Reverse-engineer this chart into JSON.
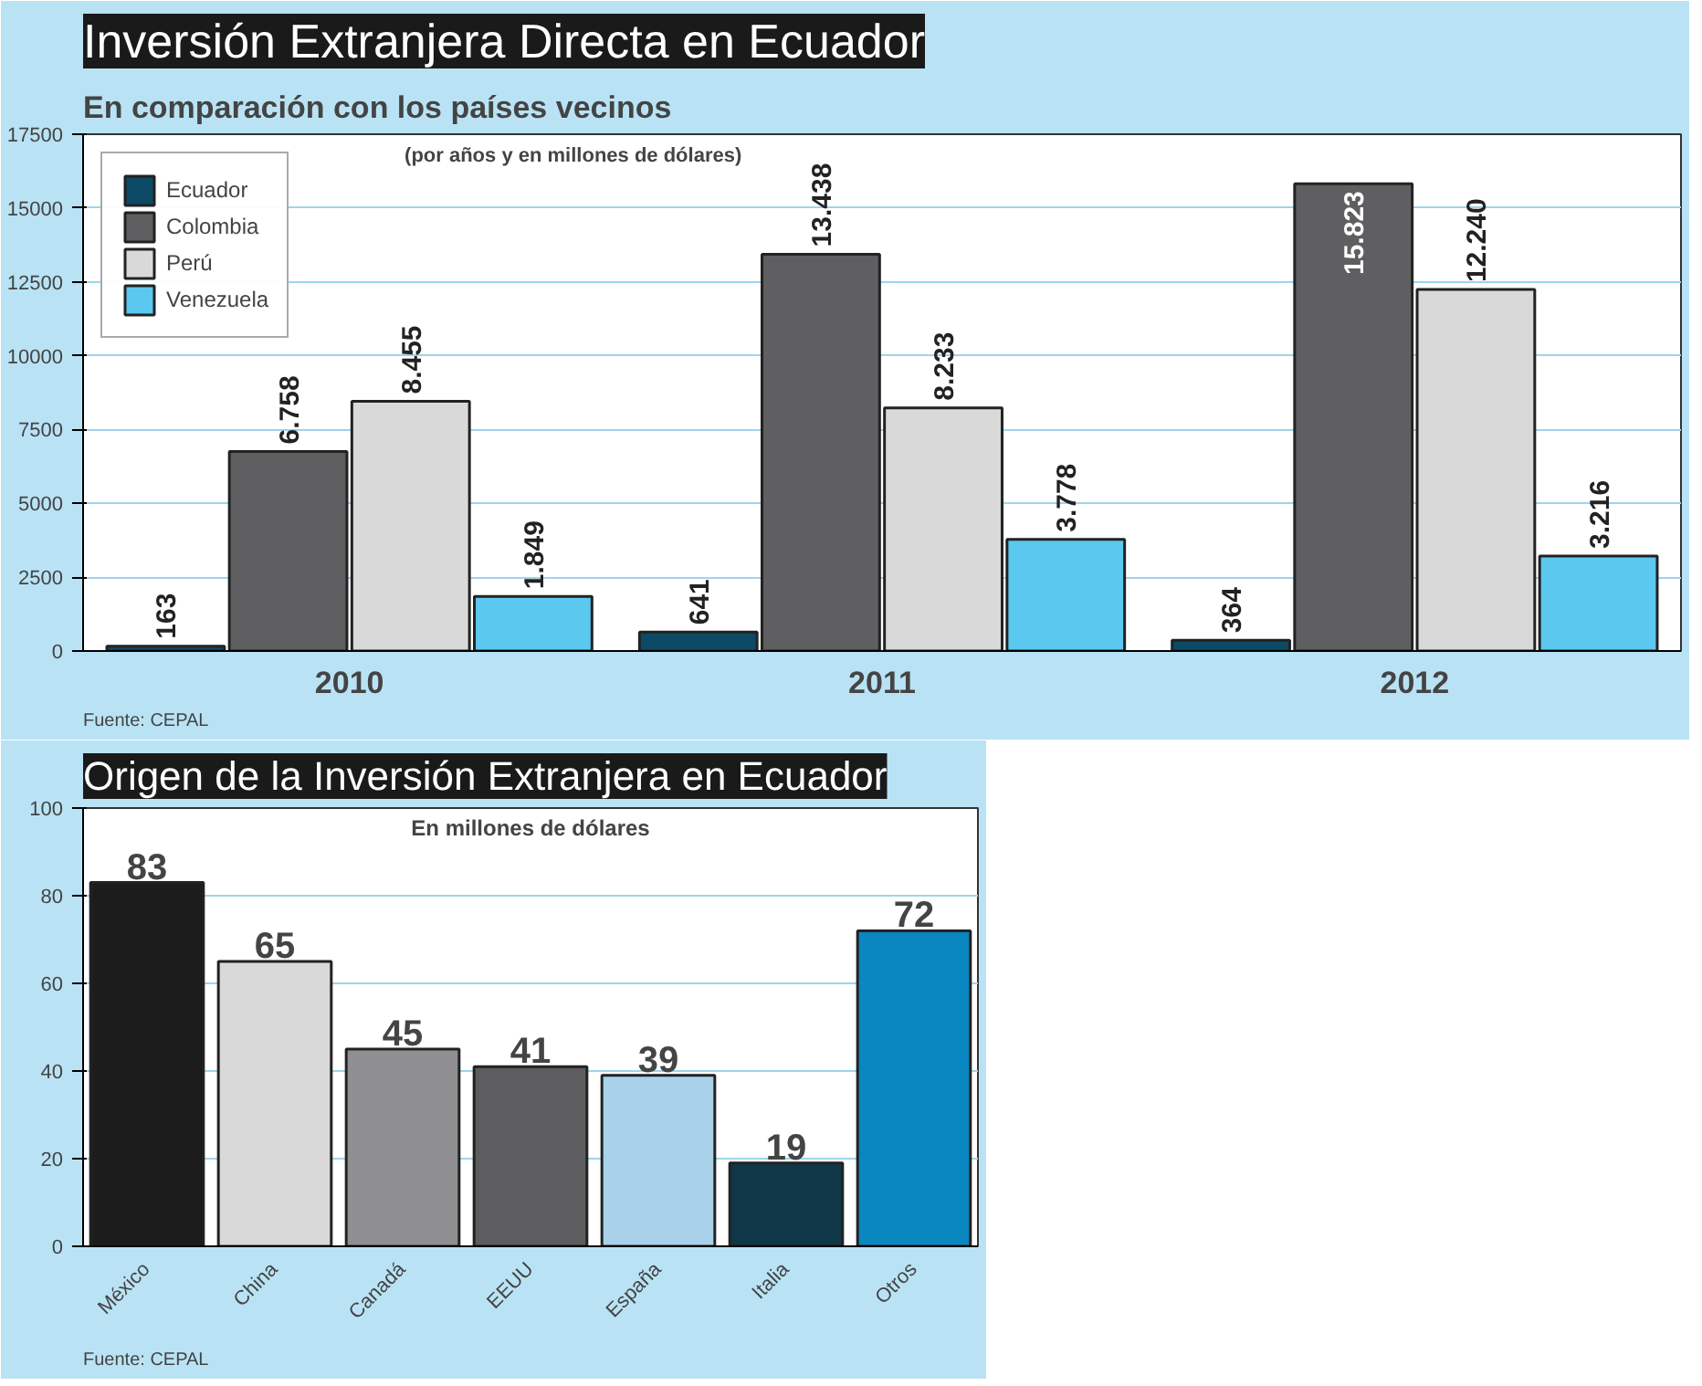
{
  "chart_data": [
    {
      "type": "bar",
      "title": "Inversión Extranjera Directa en Ecuador",
      "subtitle": "En comparación con los países vecinos",
      "annotations": [
        "(por años y en millones de dólares)",
        "Fuente: CEPAL"
      ],
      "categories": [
        "2010",
        "2011",
        "2012"
      ],
      "series": [
        {
          "name": "Ecuador",
          "color": "#0d4a66",
          "values": [
            163,
            641,
            364
          ],
          "value_labels": [
            "163",
            "641",
            "364"
          ]
        },
        {
          "name": "Colombia",
          "color": "#5f5f61",
          "values": [
            6758,
            13438,
            15823
          ],
          "value_labels": [
            "6.758",
            "13.438",
            "15.823"
          ]
        },
        {
          "name": "Perú",
          "color": "#d9d9d9",
          "values": [
            8455,
            8233,
            12240
          ],
          "value_labels": [
            "8.455",
            "8.233",
            "12.240"
          ]
        },
        {
          "name": "Venezuela",
          "color": "#5bc8f0",
          "values": [
            1849,
            3778,
            3216
          ],
          "value_labels": [
            "1.849",
            "3.778",
            "3.216"
          ]
        }
      ],
      "ylim": [
        0,
        17500
      ],
      "yticks": [
        0,
        2500,
        5000,
        7500,
        10000,
        12500,
        15000,
        17500
      ],
      "grid": "y",
      "legend": "top left"
    },
    {
      "type": "bar",
      "title": "Origen de la Inversión Extranjera en Ecuador",
      "annotations": [
        "En millones de dólares",
        "Fuente: CEPAL"
      ],
      "categories": [
        "México",
        "China",
        "Canadá",
        "EEUU",
        "España",
        "Italia",
        "Otros"
      ],
      "values": [
        83,
        65,
        45,
        41,
        39,
        19,
        72
      ],
      "colors": [
        "#1c1c1c",
        "#d9d9d9",
        "#8f8f91",
        "#5d5d5f",
        "#a9d2ea",
        "#0f3748",
        "#0a86c0"
      ],
      "data_labels": true,
      "ylim": [
        0,
        100
      ],
      "yticks": [
        0,
        20,
        40,
        60,
        80,
        100
      ],
      "grid": "y"
    }
  ]
}
